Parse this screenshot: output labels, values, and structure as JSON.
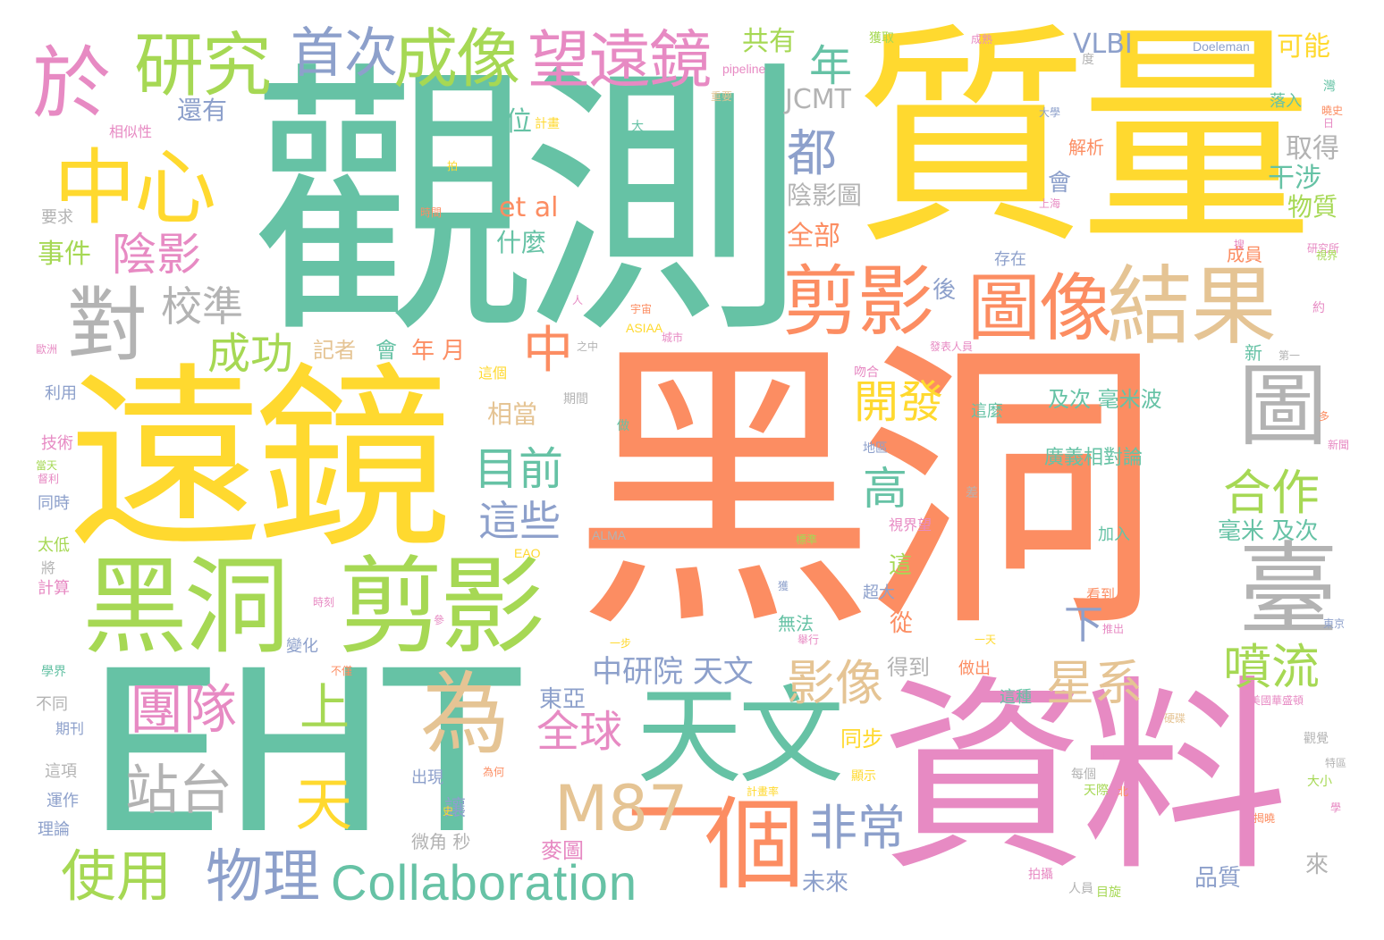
{
  "palette": {
    "orange": "#fc8d62",
    "teal": "#66c2a5",
    "yellow": "#ffd92f",
    "pink": "#e78ac3",
    "green": "#a6d854",
    "blue": "#8da0cb",
    "tan": "#e5c494",
    "gray": "#b3b3b3"
  },
  "words": [
    {
      "text": "黑洞",
      "color": "orange"
    },
    {
      "text": "觀測",
      "color": "teal"
    },
    {
      "text": "質量",
      "color": "yellow"
    },
    {
      "text": "遠鏡",
      "color": "yellow"
    },
    {
      "text": "EHT",
      "color": "teal"
    },
    {
      "text": "資料",
      "color": "pink"
    },
    {
      "text": "黑洞",
      "color": "green"
    },
    {
      "text": "剪影",
      "color": "green"
    },
    {
      "text": "臺",
      "color": "gray"
    },
    {
      "text": "結果",
      "color": "tan"
    },
    {
      "text": "圖像",
      "color": "orange"
    },
    {
      "text": "圖",
      "color": "gray"
    },
    {
      "text": "天文",
      "color": "teal"
    },
    {
      "text": "個",
      "color": "orange"
    },
    {
      "text": "一",
      "color": "orange"
    },
    {
      "text": "為",
      "color": "tan"
    },
    {
      "text": "中心",
      "color": "yellow"
    },
    {
      "text": "於",
      "color": "pink"
    },
    {
      "text": "研究",
      "color": "green"
    },
    {
      "text": "成像",
      "color": "green"
    },
    {
      "text": "望遠鏡",
      "color": "pink"
    },
    {
      "text": "首次",
      "color": "blue"
    },
    {
      "text": "對",
      "color": "gray"
    },
    {
      "text": "剪影",
      "color": "orange"
    },
    {
      "text": "M87",
      "color": "tan"
    },
    {
      "text": "Collaboration",
      "color": "teal"
    },
    {
      "text": "物理",
      "color": "blue"
    },
    {
      "text": "使用",
      "color": "green"
    },
    {
      "text": "站台",
      "color": "gray"
    },
    {
      "text": "團隊",
      "color": "pink"
    },
    {
      "text": "天",
      "color": "yellow"
    },
    {
      "text": "上",
      "color": "green"
    },
    {
      "text": "全球",
      "color": "pink"
    },
    {
      "text": "非常",
      "color": "blue"
    },
    {
      "text": "影像",
      "color": "tan"
    },
    {
      "text": "星系",
      "color": "tan"
    },
    {
      "text": "噴流",
      "color": "green"
    },
    {
      "text": "合作",
      "color": "green"
    },
    {
      "text": "開發",
      "color": "yellow"
    },
    {
      "text": "高",
      "color": "teal"
    },
    {
      "text": "目前",
      "color": "teal"
    },
    {
      "text": "這些",
      "color": "blue"
    },
    {
      "text": "中",
      "color": "orange"
    },
    {
      "text": "陰影",
      "color": "pink"
    },
    {
      "text": "校準",
      "color": "gray"
    },
    {
      "text": "成功",
      "color": "green"
    },
    {
      "text": "都",
      "color": "blue"
    },
    {
      "text": "年",
      "color": "teal"
    },
    {
      "text": "下",
      "color": "blue"
    },
    {
      "text": "中研院 天文",
      "color": "blue"
    },
    {
      "text": "可能",
      "color": "yellow"
    },
    {
      "text": "VLBI",
      "color": "blue"
    },
    {
      "text": "JCMT",
      "color": "gray"
    },
    {
      "text": "et al",
      "color": "orange"
    },
    {
      "text": "共有",
      "color": "green"
    },
    {
      "text": "還有",
      "color": "blue"
    },
    {
      "text": "事件",
      "color": "green"
    },
    {
      "text": "位",
      "color": "teal"
    },
    {
      "text": "全部",
      "color": "orange"
    },
    {
      "text": "陰影圖",
      "color": "gray"
    },
    {
      "text": "什麼",
      "color": "teal"
    },
    {
      "text": "記者",
      "color": "tan"
    },
    {
      "text": "會",
      "color": "teal"
    },
    {
      "text": "年 月",
      "color": "orange"
    },
    {
      "text": "相當",
      "color": "tan"
    },
    {
      "text": "取得",
      "color": "gray"
    },
    {
      "text": "干涉",
      "color": "teal"
    },
    {
      "text": "物質",
      "color": "green"
    },
    {
      "text": "會",
      "color": "blue"
    },
    {
      "text": "後",
      "color": "blue"
    },
    {
      "text": "及次 毫米波",
      "color": "teal"
    },
    {
      "text": "廣義相對論",
      "color": "teal"
    },
    {
      "text": "毫米 及次",
      "color": "teal"
    },
    {
      "text": "東亞",
      "color": "blue"
    },
    {
      "text": "同步",
      "color": "yellow"
    },
    {
      "text": "得到",
      "color": "gray"
    },
    {
      "text": "從",
      "color": "orange"
    },
    {
      "text": "這",
      "color": "green"
    },
    {
      "text": "讓",
      "color": "blue"
    },
    {
      "text": "微角 秒",
      "color": "gray"
    },
    {
      "text": "未來",
      "color": "blue"
    },
    {
      "text": "麥圖",
      "color": "pink"
    },
    {
      "text": "品質",
      "color": "blue"
    },
    {
      "text": "來",
      "color": "gray"
    },
    {
      "text": "成員",
      "color": "orange"
    },
    {
      "text": "存在",
      "color": "blue"
    },
    {
      "text": "解析",
      "color": "orange"
    },
    {
      "text": "落入",
      "color": "teal"
    },
    {
      "text": "新",
      "color": "teal"
    },
    {
      "text": "加入",
      "color": "teal"
    },
    {
      "text": "看到",
      "color": "orange"
    },
    {
      "text": "做出",
      "color": "orange"
    },
    {
      "text": "這種",
      "color": "teal"
    },
    {
      "text": "這麼",
      "color": "teal"
    },
    {
      "text": "無法",
      "color": "teal"
    },
    {
      "text": "超大",
      "color": "blue"
    },
    {
      "text": "視界望",
      "color": "pink"
    },
    {
      "text": "變化",
      "color": "blue"
    },
    {
      "text": "出現",
      "color": "blue"
    },
    {
      "text": "運作",
      "color": "blue"
    },
    {
      "text": "理論",
      "color": "blue"
    },
    {
      "text": "不同",
      "color": "gray"
    },
    {
      "text": "期刊",
      "color": "blue"
    },
    {
      "text": "這項",
      "color": "gray"
    },
    {
      "text": "學界",
      "color": "teal"
    },
    {
      "text": "計算",
      "color": "pink"
    },
    {
      "text": "太低",
      "color": "green"
    },
    {
      "text": "同時",
      "color": "blue"
    },
    {
      "text": "技術",
      "color": "pink"
    },
    {
      "text": "利用",
      "color": "blue"
    },
    {
      "text": "要求",
      "color": "gray"
    },
    {
      "text": "相似性",
      "color": "pink"
    },
    {
      "text": "ALMA",
      "color": "gray"
    },
    {
      "text": "EAO",
      "color": "yellow"
    },
    {
      "text": "ASIAA",
      "color": "yellow"
    },
    {
      "text": "pipeline",
      "color": "pink"
    },
    {
      "text": "Doeleman",
      "color": "blue"
    },
    {
      "text": "獲取",
      "color": "green"
    },
    {
      "text": "計畫",
      "color": "yellow"
    },
    {
      "text": "大",
      "color": "teal"
    },
    {
      "text": "時間",
      "color": "orange"
    },
    {
      "text": "期間",
      "color": "gray"
    },
    {
      "text": "做",
      "color": "teal"
    },
    {
      "text": "地區",
      "color": "blue"
    },
    {
      "text": "將",
      "color": "gray"
    },
    {
      "text": "這個",
      "color": "yellow"
    },
    {
      "text": "吻合",
      "color": "pink"
    },
    {
      "text": "之中",
      "color": "gray"
    },
    {
      "text": "每個",
      "color": "gray"
    },
    {
      "text": "大小",
      "color": "green"
    },
    {
      "text": "目旋",
      "color": "green"
    },
    {
      "text": "拍攝",
      "color": "pink"
    },
    {
      "text": "人員",
      "color": "gray"
    },
    {
      "text": "觀覺",
      "color": "gray"
    },
    {
      "text": "顯示",
      "color": "yellow"
    },
    {
      "text": "硬碟",
      "color": "tan"
    },
    {
      "text": "天際",
      "color": "green"
    },
    {
      "text": "東京",
      "color": "blue"
    },
    {
      "text": "上海",
      "color": "pink"
    },
    {
      "text": "大學",
      "color": "blue"
    },
    {
      "text": "灣",
      "color": "teal"
    },
    {
      "text": "日",
      "color": "pink"
    },
    {
      "text": "重要",
      "color": "tan"
    },
    {
      "text": "曉史",
      "color": "orange"
    },
    {
      "text": "成熟",
      "color": "pink"
    },
    {
      "text": "度",
      "color": "gray"
    },
    {
      "text": "約",
      "color": "pink"
    },
    {
      "text": "第一",
      "color": "gray"
    },
    {
      "text": "人",
      "color": "pink"
    },
    {
      "text": "宇宙",
      "color": "orange"
    },
    {
      "text": "城市",
      "color": "pink"
    },
    {
      "text": "多",
      "color": "orange"
    },
    {
      "text": "新聞",
      "color": "pink"
    },
    {
      "text": "舉行",
      "color": "pink"
    },
    {
      "text": "一天",
      "color": "yellow"
    },
    {
      "text": "一步",
      "color": "yellow"
    },
    {
      "text": "不僅",
      "color": "orange"
    },
    {
      "text": "參",
      "color": "pink"
    },
    {
      "text": "史",
      "color": "yellow"
    },
    {
      "text": "北",
      "color": "orange"
    },
    {
      "text": "學",
      "color": "pink"
    },
    {
      "text": "歐洲",
      "color": "pink"
    },
    {
      "text": "當天",
      "color": "green"
    },
    {
      "text": "督利",
      "color": "pink"
    },
    {
      "text": "揭曉",
      "color": "orange"
    },
    {
      "text": "推出",
      "color": "pink"
    },
    {
      "text": "特區",
      "color": "gray"
    },
    {
      "text": "首度",
      "color": "pink"
    },
    {
      "text": "為何",
      "color": "orange"
    },
    {
      "text": "計畫率",
      "color": "yellow"
    },
    {
      "text": "美國華盛頓",
      "color": "pink"
    },
    {
      "text": "研究所",
      "color": "pink"
    },
    {
      "text": "獲",
      "color": "blue"
    },
    {
      "text": "搜",
      "color": "pink"
    },
    {
      "text": "差",
      "color": "gray"
    },
    {
      "text": "拍",
      "color": "yellow"
    },
    {
      "text": "視界",
      "color": "green"
    },
    {
      "text": "發表人員",
      "color": "pink"
    },
    {
      "text": "標準",
      "color": "green"
    },
    {
      "text": "時刻",
      "color": "pink"
    }
  ]
}
